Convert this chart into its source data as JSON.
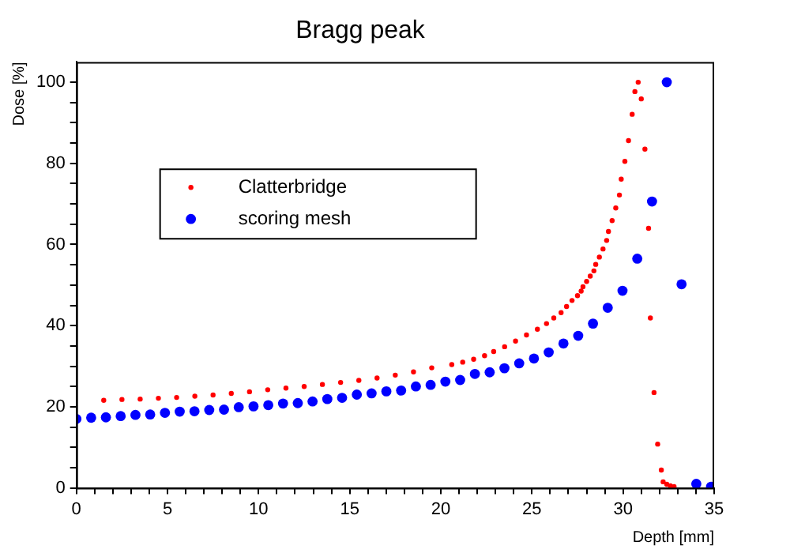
{
  "chart_data": {
    "type": "scatter",
    "title": "Bragg peak",
    "xlabel": "Depth [mm]",
    "ylabel": "Dose [%]",
    "xlim": [
      0,
      35
    ],
    "ylim": [
      0,
      105
    ],
    "xticks": [
      0,
      {
        "value": 1,
        "label": null
      },
      {
        "value": 2,
        "label": null
      },
      {
        "value": 3,
        "label": null
      },
      {
        "value": 4,
        "label": null
      },
      5,
      {
        "value": 6,
        "label": null
      },
      {
        "value": 7,
        "label": null
      },
      {
        "value": 8,
        "label": null
      },
      {
        "value": 9,
        "label": null
      },
      10,
      {
        "value": 11,
        "label": null
      },
      {
        "value": 12,
        "label": null
      },
      {
        "value": 13,
        "label": null
      },
      {
        "value": 14,
        "label": null
      },
      15,
      {
        "value": 16,
        "label": null
      },
      {
        "value": 17,
        "label": null
      },
      {
        "value": 18,
        "label": null
      },
      {
        "value": 19,
        "label": null
      },
      20,
      {
        "value": 21,
        "label": null
      },
      {
        "value": 22,
        "label": null
      },
      {
        "value": 23,
        "label": null
      },
      {
        "value": 24,
        "label": null
      },
      25,
      {
        "value": 26,
        "label": null
      },
      {
        "value": 27,
        "label": null
      },
      {
        "value": 28,
        "label": null
      },
      {
        "value": 29,
        "label": null
      },
      30,
      {
        "value": 31,
        "label": null
      },
      {
        "value": 32,
        "label": null
      },
      {
        "value": 33,
        "label": null
      },
      {
        "value": 34,
        "label": null
      },
      35
    ],
    "yticks": [
      0,
      {
        "value": 5,
        "label": null
      },
      {
        "value": 10,
        "label": null
      },
      {
        "value": 15,
        "label": null
      },
      20,
      {
        "value": 25,
        "label": null
      },
      {
        "value": 30,
        "label": null
      },
      {
        "value": 35,
        "label": null
      },
      40,
      {
        "value": 45,
        "label": null
      },
      {
        "value": 50,
        "label": null
      },
      {
        "value": 55,
        "label": null
      },
      60,
      {
        "value": 65,
        "label": null
      },
      {
        "value": 70,
        "label": null
      },
      {
        "value": 75,
        "label": null
      },
      80,
      {
        "value": 85,
        "label": null
      },
      {
        "value": 90,
        "label": null
      },
      {
        "value": 95,
        "label": null
      },
      100
    ],
    "grid": false,
    "legend": "top left",
    "marker": "circle",
    "series": [
      {
        "name": "Clatterbridge",
        "color": "#ff0000",
        "x": [
          1.5,
          2.5,
          3.5,
          4.5,
          5.5,
          6.5,
          7.5,
          8.5,
          9.5,
          10.5,
          11.5,
          12.5,
          13.5,
          14.5,
          15.5,
          16.5,
          17.5,
          18.5,
          19.5,
          20.6,
          21.2,
          21.8,
          22.4,
          22.9,
          23.5,
          24.1,
          24.7,
          25.3,
          25.8,
          26.2,
          26.6,
          26.9,
          27.2,
          27.5,
          27.7,
          27.8,
          28.0,
          28.2,
          28.4,
          28.5,
          28.7,
          28.9,
          29.1,
          29.2,
          29.4,
          29.6,
          29.8,
          29.9,
          30.1,
          30.3,
          30.5,
          30.65,
          30.83,
          31.0,
          31.2,
          31.4,
          31.5,
          31.7,
          31.9,
          32.1,
          32.2,
          32.4,
          32.6,
          32.8
        ],
        "values": [
          21.6,
          21.8,
          21.9,
          22.1,
          22.3,
          22.6,
          22.9,
          23.3,
          23.7,
          24.2,
          24.6,
          25.0,
          25.5,
          26.0,
          26.5,
          27.1,
          27.8,
          28.6,
          29.6,
          30.4,
          31.0,
          31.7,
          32.6,
          33.6,
          34.8,
          36.2,
          37.7,
          39.1,
          40.5,
          41.9,
          43.2,
          44.7,
          46.2,
          47.4,
          48.5,
          49.6,
          50.9,
          52.2,
          53.5,
          55.1,
          56.9,
          58.9,
          61.0,
          63.2,
          65.9,
          69.0,
          72.2,
          76.1,
          80.5,
          85.6,
          92.1,
          97.7,
          100,
          95.9,
          83.5,
          64.0,
          41.9,
          23.5,
          10.8,
          4.4,
          1.5,
          0.9,
          0.5,
          0.3
        ]
      },
      {
        "name": "scoring mesh",
        "color": "#0000ff",
        "x": [
          0,
          0.81,
          1.62,
          2.43,
          3.24,
          4.05,
          4.86,
          5.67,
          6.48,
          7.29,
          8.1,
          8.91,
          9.72,
          10.53,
          11.34,
          12.15,
          12.96,
          13.77,
          14.58,
          15.39,
          16.2,
          17.01,
          17.82,
          18.63,
          19.44,
          20.25,
          21.06,
          21.87,
          22.68,
          23.49,
          24.3,
          25.11,
          25.92,
          26.73,
          27.54,
          28.35,
          29.16,
          29.97,
          30.78,
          31.59,
          32.4,
          33.21,
          34.02,
          34.83
        ],
        "values": [
          17.0,
          17.3,
          17.4,
          17.7,
          18.0,
          18.1,
          18.5,
          18.8,
          18.9,
          19.2,
          19.3,
          19.9,
          20.1,
          20.4,
          20.8,
          20.9,
          21.3,
          21.9,
          22.2,
          23.0,
          23.3,
          23.8,
          24.0,
          25.0,
          25.4,
          26.2,
          26.6,
          28.1,
          28.5,
          29.5,
          30.7,
          31.9,
          33.4,
          35.6,
          37.5,
          40.5,
          44.4,
          48.6,
          56.5,
          70.6,
          100,
          50.2,
          1.0,
          0.3
        ]
      }
    ]
  }
}
